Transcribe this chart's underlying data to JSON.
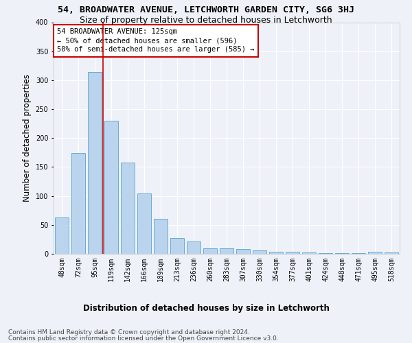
{
  "title": "54, BROADWATER AVENUE, LETCHWORTH GARDEN CITY, SG6 3HJ",
  "subtitle": "Size of property relative to detached houses in Letchworth",
  "xlabel": "Distribution of detached houses by size in Letchworth",
  "ylabel": "Number of detached properties",
  "categories": [
    "48sqm",
    "72sqm",
    "95sqm",
    "119sqm",
    "142sqm",
    "166sqm",
    "189sqm",
    "213sqm",
    "236sqm",
    "260sqm",
    "283sqm",
    "307sqm",
    "330sqm",
    "354sqm",
    "377sqm",
    "401sqm",
    "424sqm",
    "448sqm",
    "471sqm",
    "495sqm",
    "518sqm"
  ],
  "values": [
    63,
    174,
    314,
    230,
    158,
    104,
    61,
    27,
    21,
    9,
    10,
    8,
    6,
    4,
    3,
    2,
    1,
    1,
    1,
    3,
    2
  ],
  "bar_color": "#bad4ee",
  "bar_edge_color": "#6aaad4",
  "background_color": "#eef2f8",
  "grid_color": "#ffffff",
  "annotation_box_color": "#ffffff",
  "annotation_border_color": "#cc0000",
  "property_line_x": 2.5,
  "annotation_line1": "54 BROADWATER AVENUE: 125sqm",
  "annotation_line2": "← 50% of detached houses are smaller (596)",
  "annotation_line3": "50% of semi-detached houses are larger (585) →",
  "footer_line1": "Contains HM Land Registry data © Crown copyright and database right 2024.",
  "footer_line2": "Contains public sector information licensed under the Open Government Licence v3.0.",
  "ylim": [
    0,
    400
  ],
  "title_fontsize": 9.5,
  "subtitle_fontsize": 9,
  "annotation_fontsize": 7.5,
  "tick_fontsize": 7,
  "ylabel_fontsize": 8.5,
  "xlabel_fontsize": 8.5,
  "footer_fontsize": 6.5
}
